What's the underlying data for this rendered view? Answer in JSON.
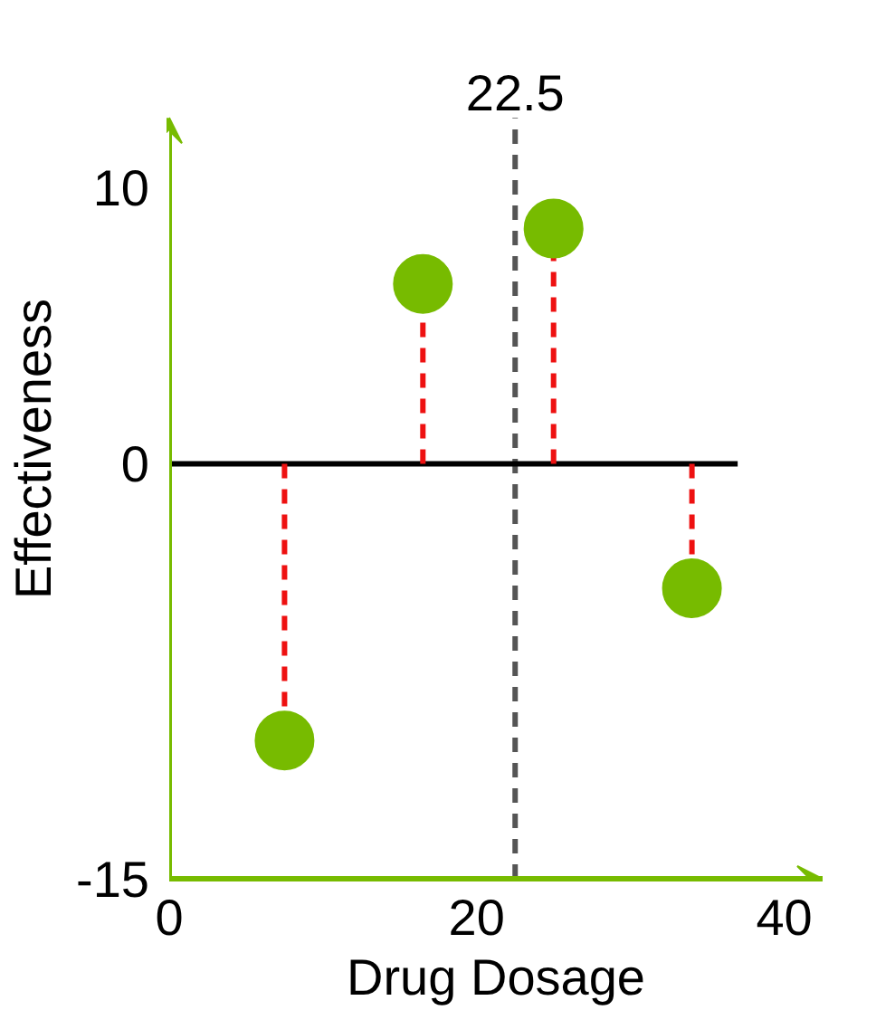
{
  "chart_data": {
    "type": "lollipop",
    "xlabel": "Drug Dosage",
    "ylabel": "Effectiveness",
    "x": [
      7.5,
      16.5,
      25,
      34
    ],
    "series": [
      {
        "color": "#77bb00",
        "values": [
          -10,
          6.5,
          8.5,
          -4.5
        ]
      }
    ],
    "xlim": [
      0,
      42.5
    ],
    "ylim": [
      -15,
      12.5
    ],
    "xticks": [
      0,
      20,
      40
    ],
    "yticks": [
      -15,
      0,
      10
    ],
    "ref_lines": [
      {
        "axis": "x",
        "value": 22.5,
        "label": "22.5",
        "color": "#555555",
        "line_style": "dashed"
      },
      {
        "axis": "y",
        "value": 0,
        "color": "#000000",
        "line_style": "solid"
      }
    ],
    "line_style": "dashed",
    "marker": "circle"
  }
}
